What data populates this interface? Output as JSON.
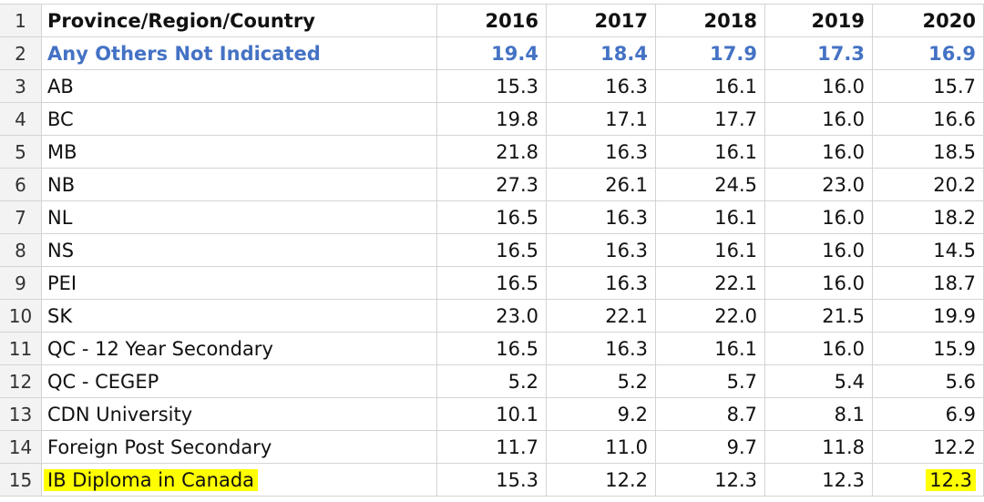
{
  "header": {
    "row": "1",
    "label": "Province/Region/Country",
    "years": [
      "2016",
      "2017",
      "2018",
      "2019",
      "2020"
    ]
  },
  "rows": [
    {
      "row": "2",
      "label": "Any Others Not Indicated",
      "values": [
        "19.4",
        "18.4",
        "17.9",
        "17.3",
        "16.9"
      ],
      "style": "blue"
    },
    {
      "row": "3",
      "label": "AB",
      "values": [
        "15.3",
        "16.3",
        "16.1",
        "16.0",
        "15.7"
      ]
    },
    {
      "row": "4",
      "label": "BC",
      "values": [
        "19.8",
        "17.1",
        "17.7",
        "16.0",
        "16.6"
      ]
    },
    {
      "row": "5",
      "label": "MB",
      "values": [
        "21.8",
        "16.3",
        "16.1",
        "16.0",
        "18.5"
      ]
    },
    {
      "row": "6",
      "label": "NB",
      "values": [
        "27.3",
        "26.1",
        "24.5",
        "23.0",
        "20.2"
      ]
    },
    {
      "row": "7",
      "label": "NL",
      "values": [
        "16.5",
        "16.3",
        "16.1",
        "16.0",
        "18.2"
      ]
    },
    {
      "row": "8",
      "label": "NS",
      "values": [
        "16.5",
        "16.3",
        "16.1",
        "16.0",
        "14.5"
      ]
    },
    {
      "row": "9",
      "label": "PEI",
      "values": [
        "16.5",
        "16.3",
        "22.1",
        "16.0",
        "18.7"
      ]
    },
    {
      "row": "10",
      "label": "SK",
      "values": [
        "23.0",
        "22.1",
        "22.0",
        "21.5",
        "19.9"
      ]
    },
    {
      "row": "11",
      "label": "QC - 12 Year Secondary",
      "values": [
        "16.5",
        "16.3",
        "16.1",
        "16.0",
        "15.9"
      ]
    },
    {
      "row": "12",
      "label": "QC - CEGEP",
      "values": [
        "5.2",
        "5.2",
        "5.7",
        "5.4",
        "5.6"
      ]
    },
    {
      "row": "13",
      "label": "CDN University",
      "values": [
        "10.1",
        "9.2",
        "8.7",
        "8.1",
        "6.9"
      ]
    },
    {
      "row": "14",
      "label": "Foreign Post Secondary",
      "values": [
        "11.7",
        "11.0",
        "9.7",
        "11.8",
        "12.2"
      ]
    },
    {
      "row": "15",
      "label": "IB Diploma in Canada",
      "values": [
        "15.3",
        "12.2",
        "12.3",
        "12.3",
        "12.3"
      ],
      "highlight": [
        true,
        false,
        false,
        false,
        false,
        true
      ]
    }
  ],
  "colors": {
    "accent_blue": "#4472c4",
    "highlight_yellow": "#ffff00",
    "gridline": "#d4d4d4"
  }
}
